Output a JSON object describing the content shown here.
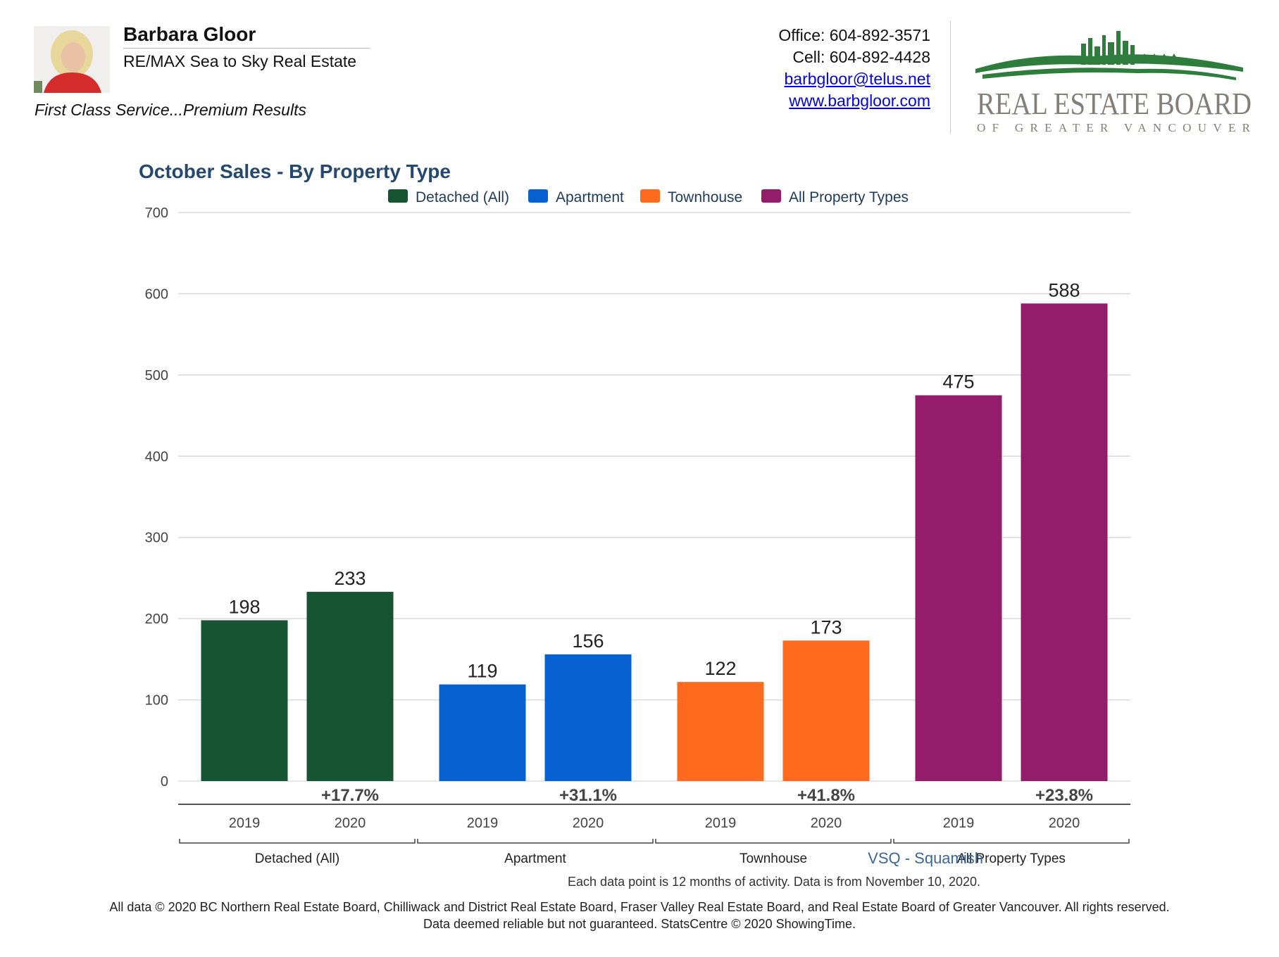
{
  "header": {
    "agent_name": "Barbara Gloor",
    "brokerage": "RE/MAX Sea to Sky Real Estate",
    "tagline": "First Class Service...Premium Results",
    "office": "Office: 604-892-3571",
    "cell": "Cell: 604-892-4428",
    "email": "barbgloor@telus.net",
    "website": "www.barbgloor.com",
    "board_logo_line1": "REAL ESTATE BOARD",
    "board_logo_line2": "OF GREATER VANCOUVER"
  },
  "colors": {
    "detached": "#175431",
    "apartment": "#0761d1",
    "townhouse": "#fe6a1e",
    "all": "#931d6b",
    "title": "#24486f",
    "logo_green": "#2e7d3c",
    "logo_text": "#847f76"
  },
  "chart_data": {
    "type": "bar",
    "title": "October Sales - By Property Type",
    "legend": [
      "Detached (All)",
      "Apartment",
      "Townhouse",
      "All Property Types"
    ],
    "legend_position": "top-center",
    "ylim": [
      0,
      700
    ],
    "yticks": [
      0,
      100,
      200,
      300,
      400,
      500,
      600,
      700
    ],
    "grid": true,
    "groups": [
      {
        "category": "Detached (All)",
        "years": [
          "2019",
          "2020"
        ],
        "values": [
          198,
          233
        ],
        "change": "+17.7%",
        "color_key": "detached"
      },
      {
        "category": "Apartment",
        "years": [
          "2019",
          "2020"
        ],
        "values": [
          119,
          156
        ],
        "change": "+31.1%",
        "color_key": "apartment"
      },
      {
        "category": "Townhouse",
        "years": [
          "2019",
          "2020"
        ],
        "values": [
          122,
          173
        ],
        "change": "+41.8%",
        "color_key": "townhouse"
      },
      {
        "category": "All Property Types",
        "years": [
          "2019",
          "2020"
        ],
        "values": [
          475,
          588
        ],
        "change": "+23.8%",
        "color_key": "all"
      }
    ]
  },
  "footer": {
    "area": "VSQ - Squamish",
    "note": "Each data point is 12 months of activity. Data is from November 10, 2020.",
    "copyright_line1": "All data © 2020 BC Northern Real Estate Board, Chilliwack and District Real Estate Board, Fraser Valley Real Estate Board, and Real Estate Board of Greater Vancouver. All rights reserved.",
    "copyright_line2": "Data deemed reliable but not guaranteed. StatsCentre © 2020 ShowingTime."
  }
}
